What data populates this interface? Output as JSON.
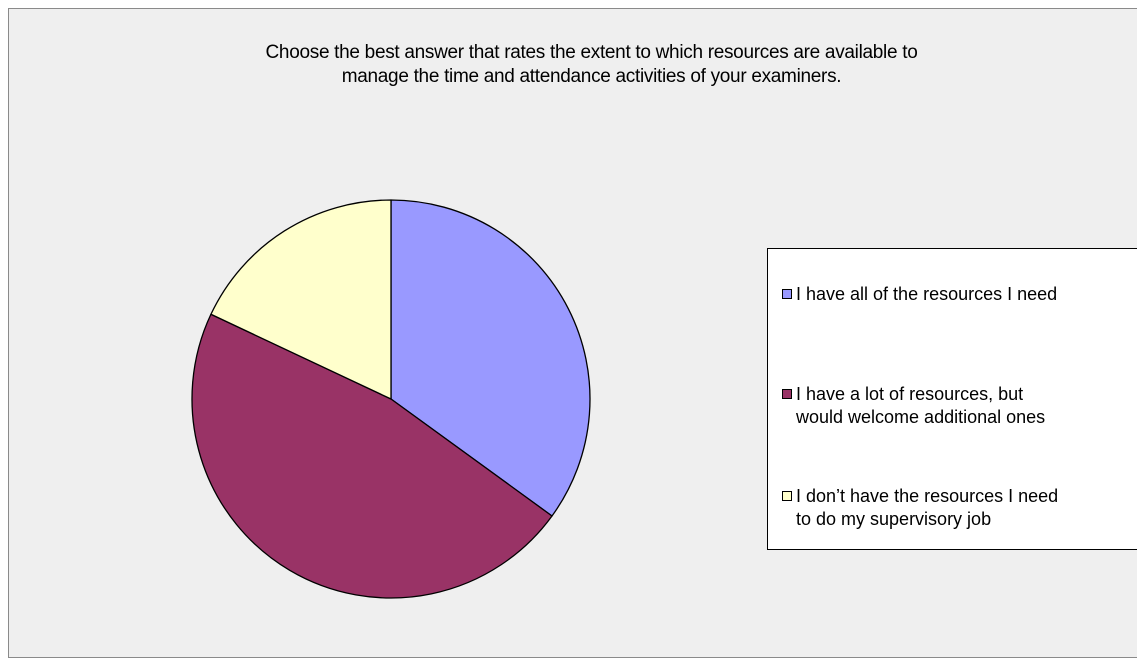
{
  "chart_data": {
    "type": "pie",
    "title": "Choose the best answer that rates the extent to which resources are available to manage the time and attendance activities of your examiners.",
    "title_lines": [
      "Choose the best answer that rates the extent to which resources are available to",
      "manage the time and attendance activities of your examiners."
    ],
    "slices": [
      {
        "label": "I have all of the resources I need",
        "value": 35,
        "color": "#9999ff"
      },
      {
        "label": "I have a lot of resources, but\nwould welcome additional ones",
        "value": 47,
        "color": "#993366"
      },
      {
        "label": "I don’t have the resources I need\nto do my supervisory job",
        "value": 18,
        "color": "#ffffcc"
      }
    ],
    "legend_position": "right"
  }
}
